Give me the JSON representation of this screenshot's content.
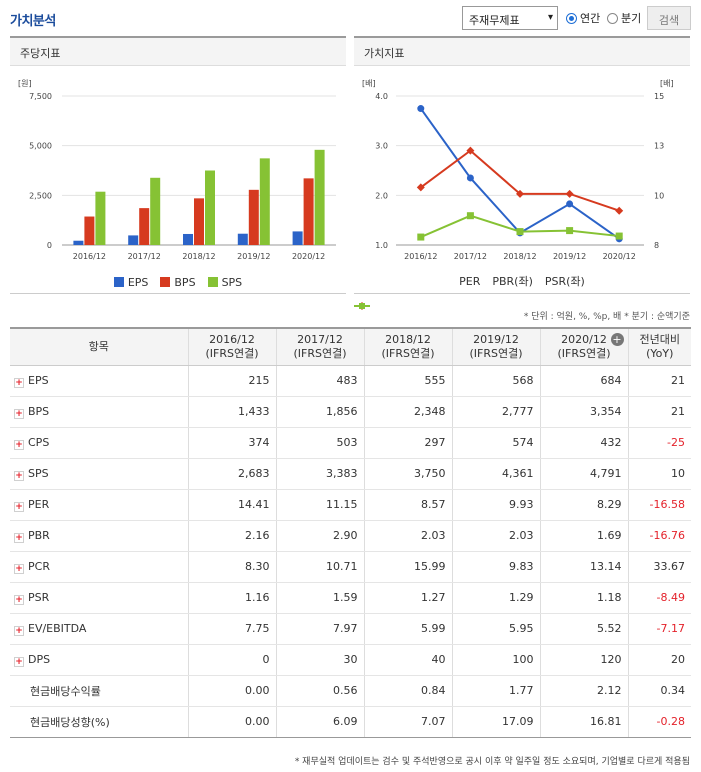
{
  "header": {
    "title": "가치분석",
    "select_value": "주재무제표",
    "radio_annual": "연간",
    "radio_quarter": "분기",
    "search_label": "검색"
  },
  "panels": {
    "left_title": "주당지표",
    "right_title": "가치지표"
  },
  "chart_data": [
    {
      "type": "bar",
      "categories": [
        "2016/12",
        "2017/12",
        "2018/12",
        "2019/12",
        "2020/12"
      ],
      "ylabel": "[원]",
      "ylim": [
        0,
        7500
      ],
      "yticks": [
        "7,500",
        "5,000",
        "2,500",
        "0"
      ],
      "series": [
        {
          "name": "EPS",
          "color": "#2b63c8",
          "values": [
            215,
            483,
            555,
            568,
            684
          ]
        },
        {
          "name": "BPS",
          "color": "#d63a1f",
          "values": [
            1433,
            1856,
            2348,
            2777,
            3354
          ]
        },
        {
          "name": "SPS",
          "color": "#86c234",
          "values": [
            2683,
            3383,
            3750,
            4361,
            4791
          ]
        }
      ]
    },
    {
      "type": "line",
      "categories": [
        "2016/12",
        "2017/12",
        "2018/12",
        "2019/12",
        "2020/12"
      ],
      "ylabel_left": "[배]",
      "ylabel_right": "[배]",
      "ylim_left": [
        1.0,
        4.0
      ],
      "yticks_left": [
        "4.0",
        "3.0",
        "2.0",
        "1.0"
      ],
      "ylim_right": [
        8,
        15
      ],
      "yticks_right": [
        "15",
        "13",
        "10",
        "8"
      ],
      "series": [
        {
          "name": "PER",
          "color": "#2b63c8",
          "axis": "right",
          "values": [
            14.41,
            11.15,
            8.57,
            9.93,
            8.29
          ]
        },
        {
          "name": "PBR(좌)",
          "color": "#d63a1f",
          "axis": "left",
          "values": [
            2.16,
            2.9,
            2.03,
            2.03,
            1.69
          ]
        },
        {
          "name": "PSR(좌)",
          "color": "#86c234",
          "axis": "left",
          "values": [
            1.16,
            1.59,
            1.27,
            1.29,
            1.18
          ]
        }
      ]
    }
  ],
  "unit_note": "* 단위 : 억원, %, %p, 배    * 분기 : 순액기준",
  "table": {
    "headers": [
      "항목",
      "2016/12\n(IFRS연결)",
      "2017/12\n(IFRS연결)",
      "2018/12\n(IFRS연결)",
      "2019/12\n(IFRS연결)",
      "2020/12\n(IFRS연결)",
      "전년대비\n(YoY)"
    ],
    "h0": "항목",
    "h1a": "2016/12",
    "h1b": "(IFRS연결)",
    "h2a": "2017/12",
    "h2b": "(IFRS연결)",
    "h3a": "2018/12",
    "h3b": "(IFRS연결)",
    "h4a": "2019/12",
    "h4b": "(IFRS연결)",
    "h5a": "2020/12",
    "h5b": "(IFRS연결)",
    "h6a": "전년대비",
    "h6b": "(YoY)",
    "rows": [
      {
        "label": "EPS",
        "expand": true,
        "values": [
          "215",
          "483",
          "555",
          "568",
          "684",
          "21"
        ]
      },
      {
        "label": "BPS",
        "expand": true,
        "values": [
          "1,433",
          "1,856",
          "2,348",
          "2,777",
          "3,354",
          "21"
        ]
      },
      {
        "label": "CPS",
        "expand": true,
        "values": [
          "374",
          "503",
          "297",
          "574",
          "432",
          "-25"
        ]
      },
      {
        "label": "SPS",
        "expand": true,
        "values": [
          "2,683",
          "3,383",
          "3,750",
          "4,361",
          "4,791",
          "10"
        ]
      },
      {
        "label": "PER",
        "expand": true,
        "values": [
          "14.41",
          "11.15",
          "8.57",
          "9.93",
          "8.29",
          "-16.58"
        ]
      },
      {
        "label": "PBR",
        "expand": true,
        "values": [
          "2.16",
          "2.90",
          "2.03",
          "2.03",
          "1.69",
          "-16.76"
        ]
      },
      {
        "label": "PCR",
        "expand": true,
        "values": [
          "8.30",
          "10.71",
          "15.99",
          "9.83",
          "13.14",
          "33.67"
        ]
      },
      {
        "label": "PSR",
        "expand": true,
        "values": [
          "1.16",
          "1.59",
          "1.27",
          "1.29",
          "1.18",
          "-8.49"
        ]
      },
      {
        "label": "EV/EBITDA",
        "expand": true,
        "values": [
          "7.75",
          "7.97",
          "5.99",
          "5.95",
          "5.52",
          "-7.17"
        ]
      },
      {
        "label": "DPS",
        "expand": true,
        "values": [
          "0",
          "30",
          "40",
          "100",
          "120",
          "20"
        ]
      },
      {
        "label": "현금배당수익률",
        "expand": false,
        "values": [
          "0.00",
          "0.56",
          "0.84",
          "1.77",
          "2.12",
          "0.34"
        ]
      },
      {
        "label": "현금배당성향(%)",
        "expand": false,
        "values": [
          "0.00",
          "6.09",
          "7.07",
          "17.09",
          "16.81",
          "-0.28"
        ]
      }
    ]
  },
  "footnote": "* 재무실적 업데이트는 검수 및 주석반영으로 공시 이후 약 일주일 정도 소요되며, 기업별로 다르게 적용됨"
}
